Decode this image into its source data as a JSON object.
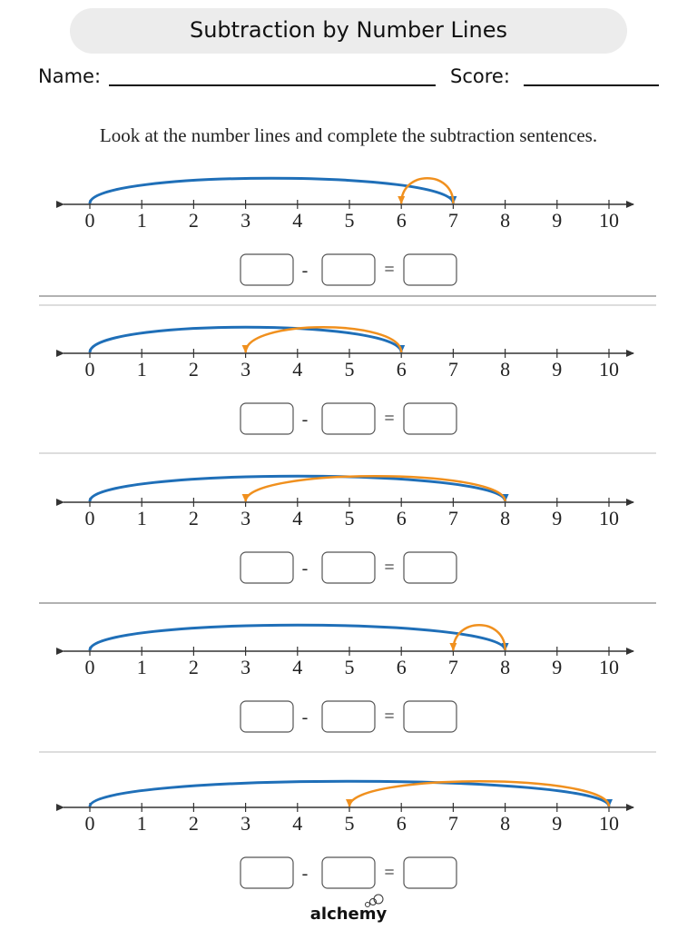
{
  "header": {
    "title": "Subtraction by Number Lines",
    "name_label": "Name:",
    "score_label": "Score:"
  },
  "instruction": "Look at the number lines and complete the subtraction sentences.",
  "number_line": {
    "ticks": [
      0,
      1,
      2,
      3,
      4,
      5,
      6,
      7,
      8,
      9,
      10
    ]
  },
  "signs": {
    "minus": "-",
    "equals": "="
  },
  "problems": [
    {
      "start": 7,
      "result": 6
    },
    {
      "start": 6,
      "result": 3
    },
    {
      "start": 8,
      "result": 3
    },
    {
      "start": 8,
      "result": 7
    },
    {
      "start": 10,
      "result": 5
    }
  ],
  "footer": {
    "logo": "alchemy"
  }
}
